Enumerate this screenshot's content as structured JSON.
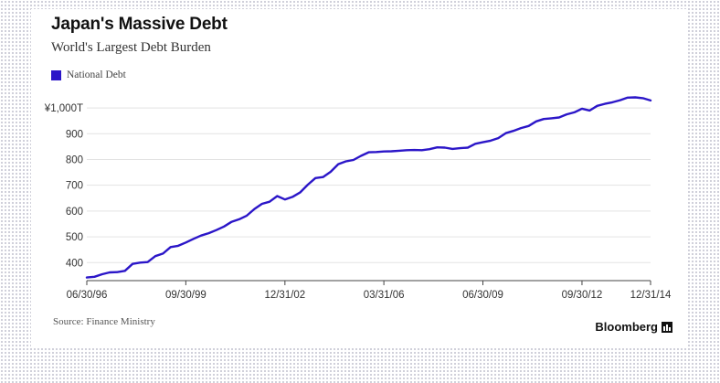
{
  "header": {
    "title": "Japan's Massive Debt",
    "subtitle": "World's Largest Debt Burden"
  },
  "legend": {
    "label": "National Debt",
    "color": "#2b16c8"
  },
  "footer": {
    "source": "Source: Finance Ministry",
    "brand": "Bloomberg",
    "brand_icon": "bloomberg-bars-icon"
  },
  "chart_data": {
    "type": "line",
    "series": [
      {
        "name": "National Debt",
        "color": "#2b16c8",
        "x": [
          "1996-06-30",
          "1996-09-30",
          "1996-12-31",
          "1997-03-31",
          "1997-06-30",
          "1997-09-30",
          "1997-12-31",
          "1998-03-31",
          "1998-06-30",
          "1998-09-30",
          "1998-12-31",
          "1999-03-31",
          "1999-06-30",
          "1999-09-30",
          "1999-12-31",
          "2000-03-31",
          "2000-06-30",
          "2000-09-30",
          "2000-12-31",
          "2001-03-31",
          "2001-06-30",
          "2001-09-30",
          "2001-12-31",
          "2002-03-31",
          "2002-06-30",
          "2002-09-30",
          "2002-12-31",
          "2003-03-31",
          "2003-06-30",
          "2003-09-30",
          "2003-12-31",
          "2004-03-31",
          "2004-06-30",
          "2004-09-30",
          "2004-12-31",
          "2005-03-31",
          "2005-06-30",
          "2005-09-30",
          "2005-12-31",
          "2006-03-31",
          "2006-06-30",
          "2006-09-30",
          "2006-12-31",
          "2007-03-31",
          "2007-06-30",
          "2007-09-30",
          "2007-12-31",
          "2008-03-31",
          "2008-06-30",
          "2008-09-30",
          "2008-12-31",
          "2009-03-31",
          "2009-06-30",
          "2009-09-30",
          "2009-12-31",
          "2010-03-31",
          "2010-06-30",
          "2010-09-30",
          "2010-12-31",
          "2011-03-31",
          "2011-06-30",
          "2011-09-30",
          "2011-12-31",
          "2012-03-31",
          "2012-06-30",
          "2012-09-30",
          "2012-12-31",
          "2013-03-31",
          "2013-06-30",
          "2013-09-30",
          "2013-12-31",
          "2014-03-31",
          "2014-06-30",
          "2014-09-30",
          "2014-12-31"
        ],
        "values": [
          342,
          345,
          355,
          362,
          363,
          368,
          395,
          400,
          402,
          425,
          435,
          460,
          465,
          478,
          492,
          505,
          514,
          526,
          540,
          558,
          568,
          582,
          608,
          628,
          636,
          658,
          645,
          655,
          672,
          702,
          728,
          732,
          752,
          782,
          793,
          798,
          814,
          828,
          829,
          831,
          832,
          834,
          836,
          837,
          836,
          840,
          847,
          846,
          841,
          844,
          846,
          861,
          867,
          873,
          883,
          902,
          911,
          922,
          930,
          948,
          957,
          960,
          963,
          975,
          983,
          997,
          990,
          1008,
          1016,
          1022,
          1030,
          1040,
          1041,
          1038,
          1029
        ]
      }
    ],
    "ylim": [
      330,
      1050
    ],
    "yticks": [
      400,
      500,
      600,
      700,
      800,
      900,
      1000
    ],
    "ytick_labels": [
      "400",
      "500",
      "600",
      "700",
      "800",
      "900",
      "¥1,000T"
    ],
    "xlim": [
      "1996-06-30",
      "2014-12-31"
    ],
    "xticks": [
      "1996-06-30",
      "1999-09-30",
      "2002-12-31",
      "2006-03-31",
      "2009-06-30",
      "2012-09-30",
      "2014-12-31"
    ],
    "xtick_labels": [
      "06/30/96",
      "09/30/99",
      "12/31/02",
      "03/31/06",
      "06/30/09",
      "09/30/12",
      "12/31/14"
    ],
    "grid": true,
    "legend_position": "top-left"
  }
}
